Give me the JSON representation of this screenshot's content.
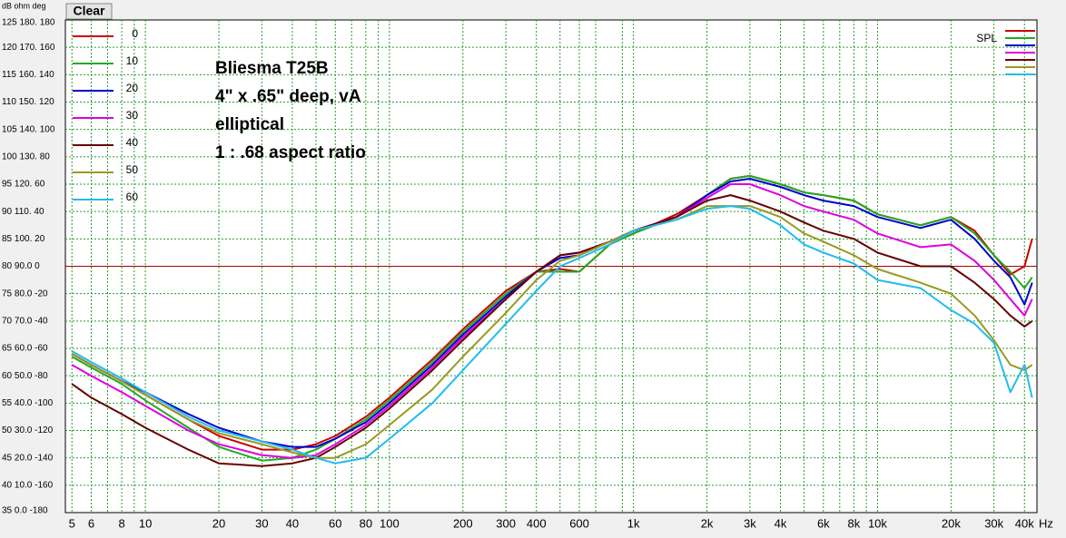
{
  "chart_data": {
    "type": "line",
    "button": "Clear",
    "y_header": "dB ohm deg",
    "x_unit": "Hz",
    "spl_label": "SPL",
    "annotation": [
      "Bliesma T25B",
      "4\" x .65\" deep, vA",
      "elliptical",
      "1 : .68 aspect ratio"
    ],
    "xscale": "log",
    "xlim": [
      4.7,
      45000
    ],
    "ylim": [
      35,
      125
    ],
    "grid": true,
    "ref_line": {
      "value": 80,
      "color": "#aa0000"
    },
    "yticks": [
      {
        "value": 125,
        "label": "125 180. 180"
      },
      {
        "value": 120,
        "label": "120 170. 160"
      },
      {
        "value": 115,
        "label": "115 160. 140"
      },
      {
        "value": 110,
        "label": "110 150. 120"
      },
      {
        "value": 105,
        "label": "105 140. 100"
      },
      {
        "value": 100,
        "label": "100 130. 80"
      },
      {
        "value": 95,
        "label": "95 120. 60"
      },
      {
        "value": 90,
        "label": "90 110. 40"
      },
      {
        "value": 85,
        "label": "85 100. 20"
      },
      {
        "value": 80,
        "label": "80 90.0 0"
      },
      {
        "value": 75,
        "label": "75 80.0 -20"
      },
      {
        "value": 70,
        "label": "70 70.0 -40"
      },
      {
        "value": 65,
        "label": "65 60.0 -60"
      },
      {
        "value": 60,
        "label": "60 50.0 -80"
      },
      {
        "value": 55,
        "label": "55 40.0 -100"
      },
      {
        "value": 50,
        "label": "50 30.0 -120"
      },
      {
        "value": 45,
        "label": "45 20.0 -140"
      },
      {
        "value": 40,
        "label": "40 10.0 -160"
      },
      {
        "value": 35,
        "label": "35 0.0 -180"
      }
    ],
    "xticks": [
      5,
      6,
      8,
      10,
      20,
      30,
      40,
      60,
      80,
      100,
      200,
      300,
      400,
      600,
      {
        "value": 1000,
        "label": "1k"
      },
      {
        "value": 2000,
        "label": "2k"
      },
      {
        "value": 3000,
        "label": "3k"
      },
      {
        "value": 4000,
        "label": "4k"
      },
      {
        "value": 6000,
        "label": "6k"
      },
      {
        "value": 8000,
        "label": "8k"
      },
      {
        "value": 10000,
        "label": "10k"
      },
      {
        "value": 20000,
        "label": "20k"
      },
      {
        "value": 30000,
        "label": "30k"
      },
      {
        "value": 40000,
        "label": "40k"
      }
    ],
    "xminor": [
      7,
      9,
      50,
      70,
      90,
      500,
      700,
      900,
      5000,
      7000,
      9000
    ],
    "x": [
      5,
      6,
      8,
      10,
      15,
      20,
      30,
      40,
      50,
      60,
      80,
      100,
      150,
      200,
      300,
      400,
      500,
      600,
      800,
      1000,
      1500,
      2000,
      2500,
      3000,
      4000,
      5000,
      6000,
      8000,
      10000,
      15000,
      20000,
      25000,
      30000,
      35000,
      40000,
      43000
    ],
    "series": [
      {
        "name": "0",
        "color": "#cc0000",
        "values": [
          64,
          62,
          59,
          56.5,
          52,
          49,
          46.5,
          46.5,
          47.5,
          49,
          52.5,
          56,
          63,
          68.5,
          75.5,
          79,
          79.5,
          79,
          84,
          86,
          89.5,
          93,
          96,
          96.5,
          95,
          93.5,
          93,
          92,
          89.5,
          87.5,
          89,
          86.5,
          82,
          78.5,
          80,
          85
        ]
      },
      {
        "name": "10",
        "color": "#22aa22",
        "values": [
          63.5,
          61.5,
          58.5,
          55.5,
          50.5,
          47,
          44.5,
          45,
          46.5,
          48.5,
          52,
          55.5,
          62.5,
          68,
          75,
          79,
          79,
          79,
          84,
          86,
          89,
          93,
          96,
          96.5,
          95,
          93.5,
          93,
          92,
          89.5,
          87.5,
          89,
          86,
          82,
          79,
          76,
          78
        ]
      },
      {
        "name": "20",
        "color": "#0000cc",
        "values": [
          64,
          62,
          59,
          57,
          53,
          50.5,
          48,
          47,
          47,
          48.5,
          51.5,
          55,
          62,
          67.5,
          74.5,
          79,
          81.5,
          82,
          84.5,
          86.5,
          89,
          93,
          95.5,
          96,
          94.5,
          93,
          92,
          91,
          89,
          87,
          88.5,
          85,
          81,
          78,
          73,
          77
        ]
      },
      {
        "name": "30",
        "color": "#dd00dd",
        "values": [
          62,
          60,
          57,
          54.5,
          50,
          47.5,
          45.5,
          45,
          45.5,
          47.5,
          51,
          54.5,
          61.5,
          67,
          74,
          79,
          82,
          82.5,
          84.5,
          86.5,
          89,
          92.5,
          95,
          95,
          93,
          91,
          90,
          88.5,
          86,
          83.5,
          84,
          81,
          77.5,
          74,
          71,
          74
        ]
      },
      {
        "name": "40",
        "color": "#660000",
        "values": [
          58.5,
          56,
          53,
          50.5,
          46.5,
          44,
          43.5,
          44,
          45,
          47,
          50.5,
          54,
          61,
          66.5,
          74,
          79,
          82,
          82.5,
          84.5,
          86.5,
          89,
          92,
          93,
          92,
          90,
          88,
          86.5,
          85,
          82.5,
          80,
          80,
          77,
          74,
          71,
          69,
          70
        ]
      },
      {
        "name": "50",
        "color": "#999922",
        "values": [
          64,
          62,
          59,
          56.5,
          52,
          49.5,
          47.5,
          46,
          45,
          45,
          47.5,
          51,
          57.5,
          63.5,
          71.5,
          77.5,
          81,
          82,
          84.5,
          86.5,
          88.5,
          91,
          91,
          91,
          89,
          86,
          84.5,
          82,
          79.5,
          77,
          75,
          71,
          66.5,
          62,
          61,
          62
        ]
      },
      {
        "name": "60",
        "color": "#22bbee",
        "values": [
          64.5,
          62.5,
          59.5,
          57,
          52.5,
          50,
          48,
          46.5,
          45,
          44,
          45,
          48.5,
          55,
          61,
          69.5,
          75.5,
          80,
          81.5,
          84,
          86.5,
          88.5,
          90.5,
          91,
          90.5,
          87.5,
          84,
          82.5,
          80.5,
          77.5,
          76,
          72,
          69.5,
          66,
          57,
          62,
          56
        ]
      }
    ]
  }
}
